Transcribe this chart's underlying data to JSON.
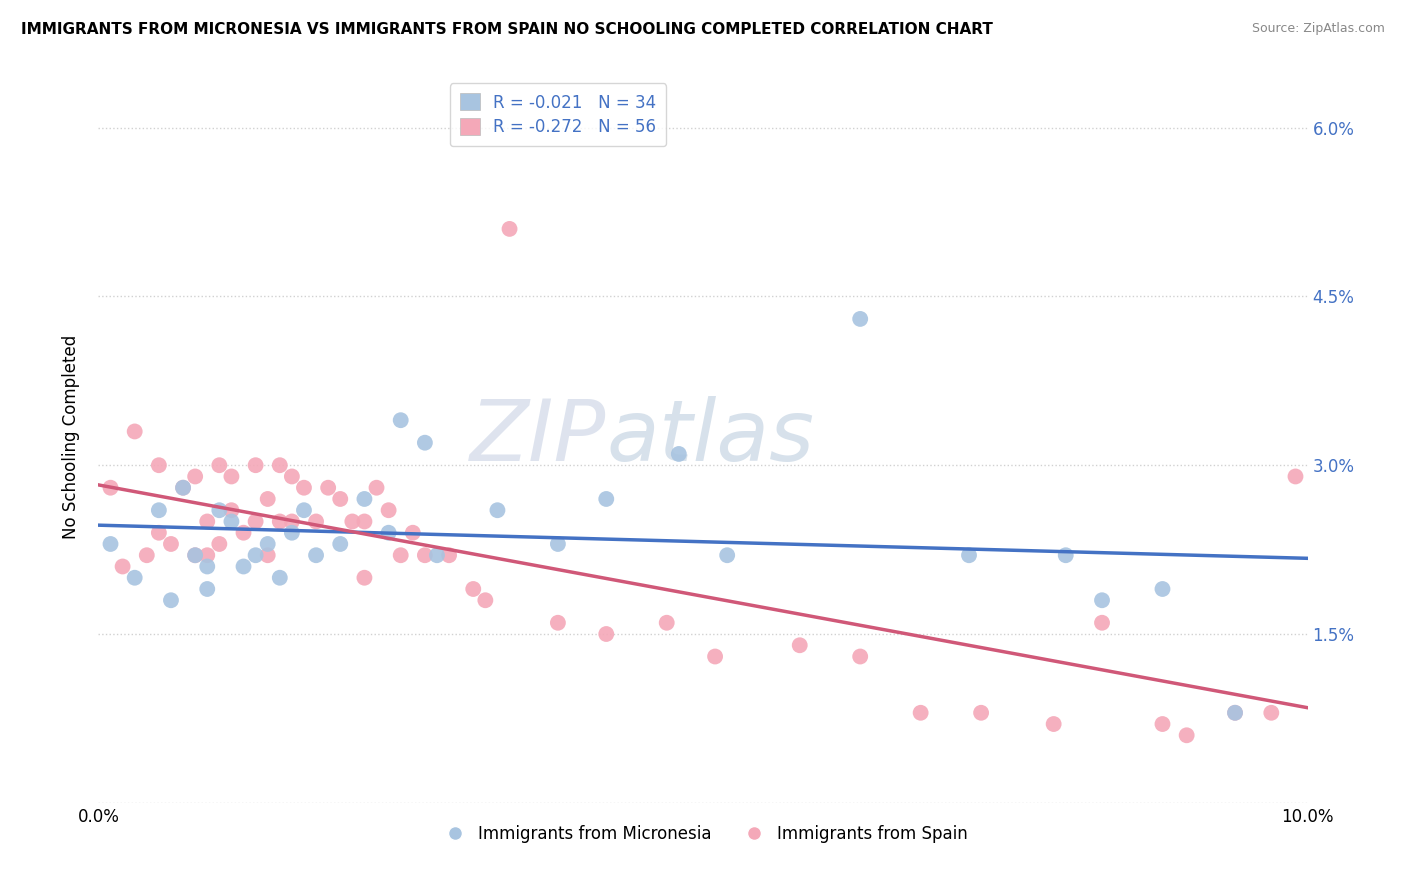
{
  "title": "IMMIGRANTS FROM MICRONESIA VS IMMIGRANTS FROM SPAIN NO SCHOOLING COMPLETED CORRELATION CHART",
  "source": "Source: ZipAtlas.com",
  "ylabel": "No Schooling Completed",
  "xlim": [
    0.0,
    0.1
  ],
  "ylim": [
    0.0,
    0.065
  ],
  "micronesia_color": "#a8c4e0",
  "spain_color": "#f4a8b8",
  "micronesia_line_color": "#4472c4",
  "spain_line_color": "#d05878",
  "legend_micronesia": "R = -0.021   N = 34",
  "legend_spain": "R = -0.272   N = 56",
  "legend_micronesia_label": "Immigrants from Micronesia",
  "legend_spain_label": "Immigrants from Spain",
  "watermark": "ZIPatlas",
  "background_color": "#ffffff",
  "grid_color": "#cccccc",
  "micronesia_scatter_x": [
    0.001,
    0.003,
    0.005,
    0.006,
    0.007,
    0.008,
    0.009,
    0.009,
    0.01,
    0.011,
    0.012,
    0.013,
    0.014,
    0.015,
    0.016,
    0.017,
    0.018,
    0.02,
    0.022,
    0.024,
    0.025,
    0.027,
    0.028,
    0.033,
    0.038,
    0.042,
    0.048,
    0.052,
    0.063,
    0.072,
    0.08,
    0.083,
    0.088,
    0.094
  ],
  "micronesia_scatter_y": [
    0.023,
    0.02,
    0.026,
    0.018,
    0.028,
    0.022,
    0.021,
    0.019,
    0.026,
    0.025,
    0.021,
    0.022,
    0.023,
    0.02,
    0.024,
    0.026,
    0.022,
    0.023,
    0.027,
    0.024,
    0.034,
    0.032,
    0.022,
    0.026,
    0.023,
    0.027,
    0.031,
    0.022,
    0.043,
    0.022,
    0.022,
    0.018,
    0.019,
    0.008
  ],
  "spain_scatter_x": [
    0.001,
    0.002,
    0.003,
    0.004,
    0.005,
    0.005,
    0.006,
    0.007,
    0.008,
    0.008,
    0.009,
    0.009,
    0.01,
    0.01,
    0.011,
    0.011,
    0.012,
    0.013,
    0.013,
    0.014,
    0.014,
    0.015,
    0.015,
    0.016,
    0.016,
    0.017,
    0.018,
    0.019,
    0.02,
    0.021,
    0.022,
    0.022,
    0.023,
    0.024,
    0.025,
    0.026,
    0.027,
    0.029,
    0.031,
    0.032,
    0.034,
    0.038,
    0.042,
    0.047,
    0.051,
    0.058,
    0.063,
    0.068,
    0.073,
    0.079,
    0.083,
    0.088,
    0.09,
    0.094,
    0.097,
    0.099
  ],
  "spain_scatter_y": [
    0.028,
    0.021,
    0.033,
    0.022,
    0.03,
    0.024,
    0.023,
    0.028,
    0.022,
    0.029,
    0.025,
    0.022,
    0.03,
    0.023,
    0.029,
    0.026,
    0.024,
    0.03,
    0.025,
    0.027,
    0.022,
    0.03,
    0.025,
    0.029,
    0.025,
    0.028,
    0.025,
    0.028,
    0.027,
    0.025,
    0.025,
    0.02,
    0.028,
    0.026,
    0.022,
    0.024,
    0.022,
    0.022,
    0.019,
    0.018,
    0.051,
    0.016,
    0.015,
    0.016,
    0.013,
    0.014,
    0.013,
    0.008,
    0.008,
    0.007,
    0.016,
    0.007,
    0.006,
    0.008,
    0.008,
    0.029
  ]
}
